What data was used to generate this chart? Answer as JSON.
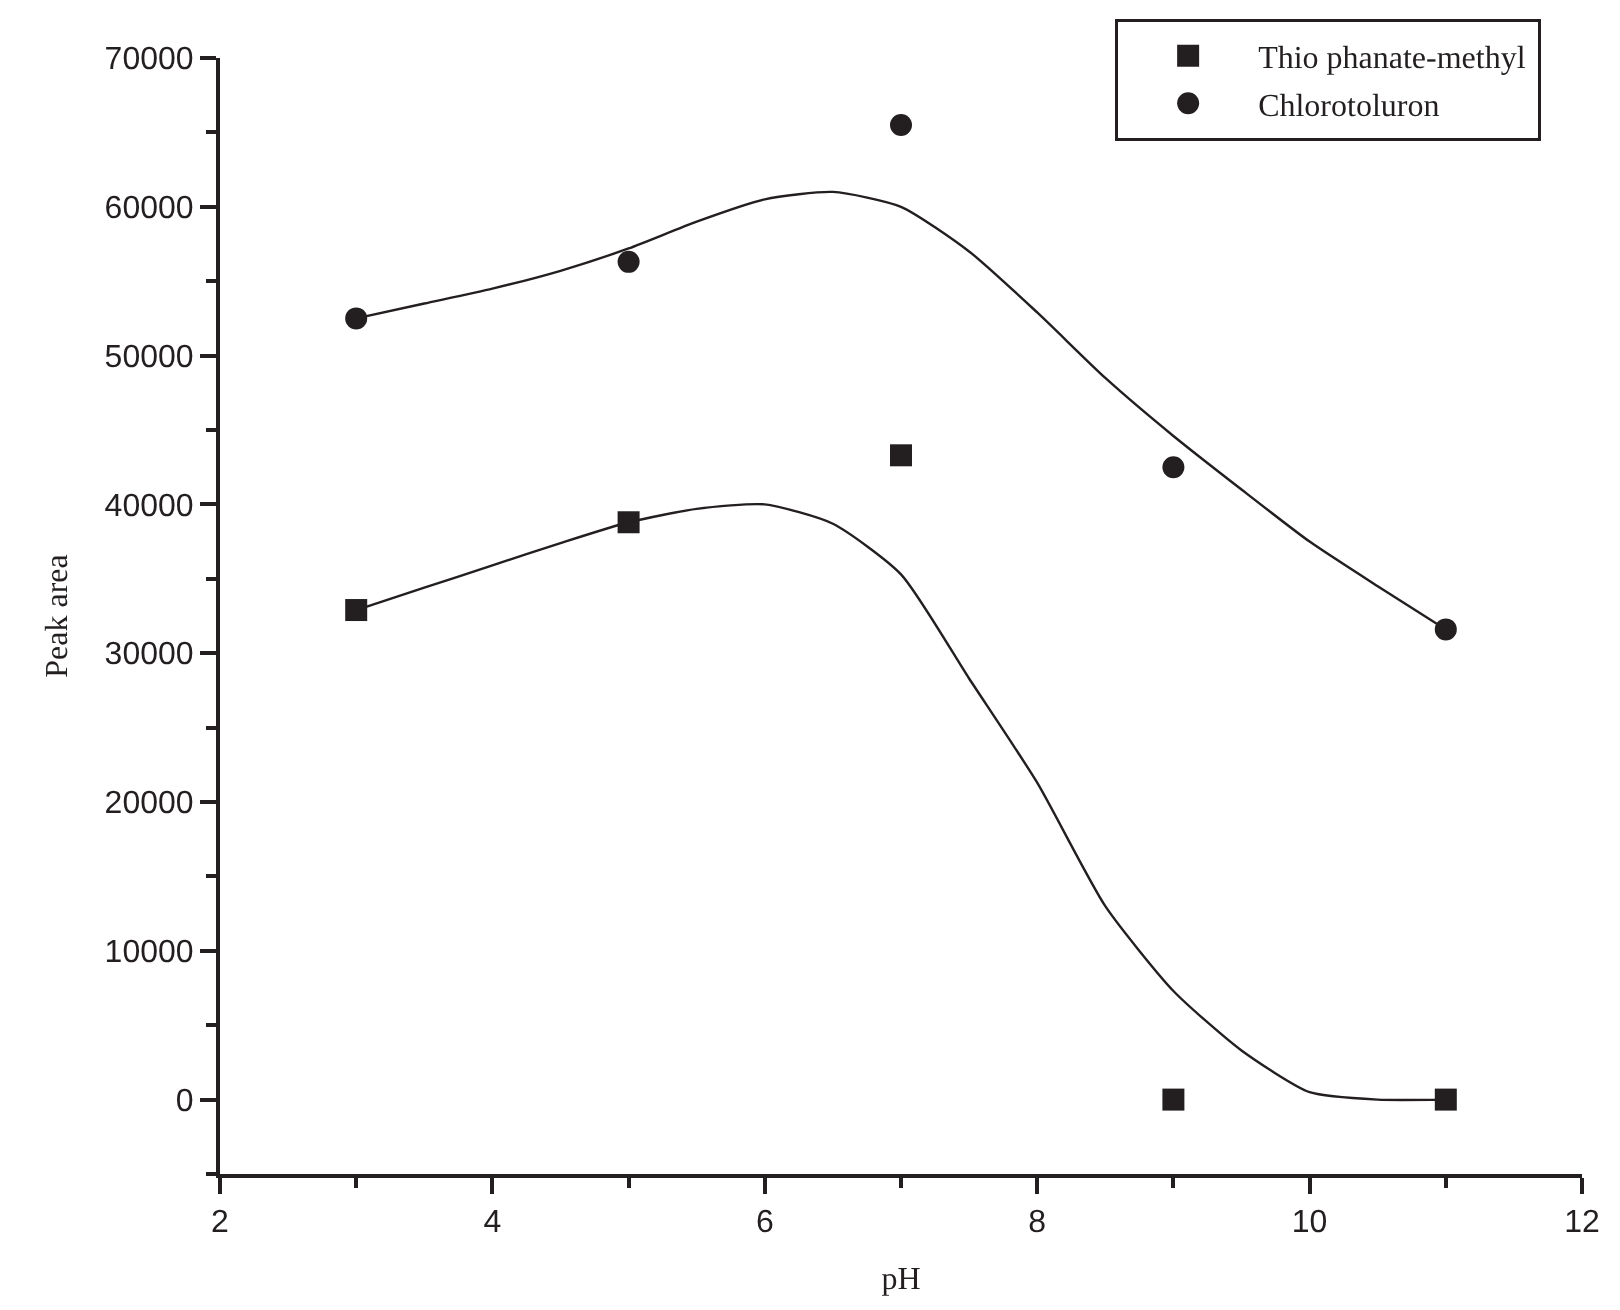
{
  "chart_data": {
    "type": "scatter",
    "xlabel": "pH",
    "ylabel": "Peak area",
    "xlim": [
      2,
      12
    ],
    "xticks": [
      2,
      4,
      6,
      8,
      10,
      12
    ],
    "ylim": [
      -5000,
      70000
    ],
    "yticks": [
      0,
      10000,
      20000,
      30000,
      40000,
      50000,
      60000,
      70000
    ],
    "legend": "top right",
    "series": [
      {
        "name": "Thio phanate-methyl",
        "color": "#231f20",
        "marker": "square",
        "x": [
          3,
          5,
          7,
          9,
          11
        ],
        "values": [
          32900,
          38800,
          43300,
          0,
          0
        ]
      },
      {
        "name": "Chlorotoluron",
        "color": "#231f20",
        "marker": "circle",
        "x": [
          3,
          5,
          7,
          9,
          11
        ],
        "values": [
          52500,
          56300,
          65500,
          42500,
          31600
        ]
      },
      {
        "type": "line",
        "color": "#231f20",
        "marker": "none",
        "x": [
          3,
          3.5,
          4,
          4.5,
          5,
          5.5,
          6,
          6.5,
          7,
          7.5,
          8,
          8.5,
          9,
          9.5,
          10,
          10.5,
          11
        ],
        "values": [
          32900,
          34400,
          35900,
          37400,
          38800,
          39700,
          40000,
          38700,
          35300,
          28300,
          21300,
          13000,
          7300,
          3300,
          500,
          0,
          0
        ]
      },
      {
        "type": "line",
        "color": "#231f20",
        "marker": "none",
        "x": [
          3,
          3.5,
          4,
          4.5,
          5,
          5.5,
          6,
          6.5,
          7,
          7.5,
          8,
          8.5,
          9,
          9.5,
          10,
          10.5,
          11
        ],
        "values": [
          52500,
          53500,
          54500,
          55700,
          57200,
          59000,
          60500,
          61000,
          60000,
          57000,
          52900,
          48500,
          44600,
          41000,
          37500,
          34500,
          31600
        ]
      }
    ]
  }
}
